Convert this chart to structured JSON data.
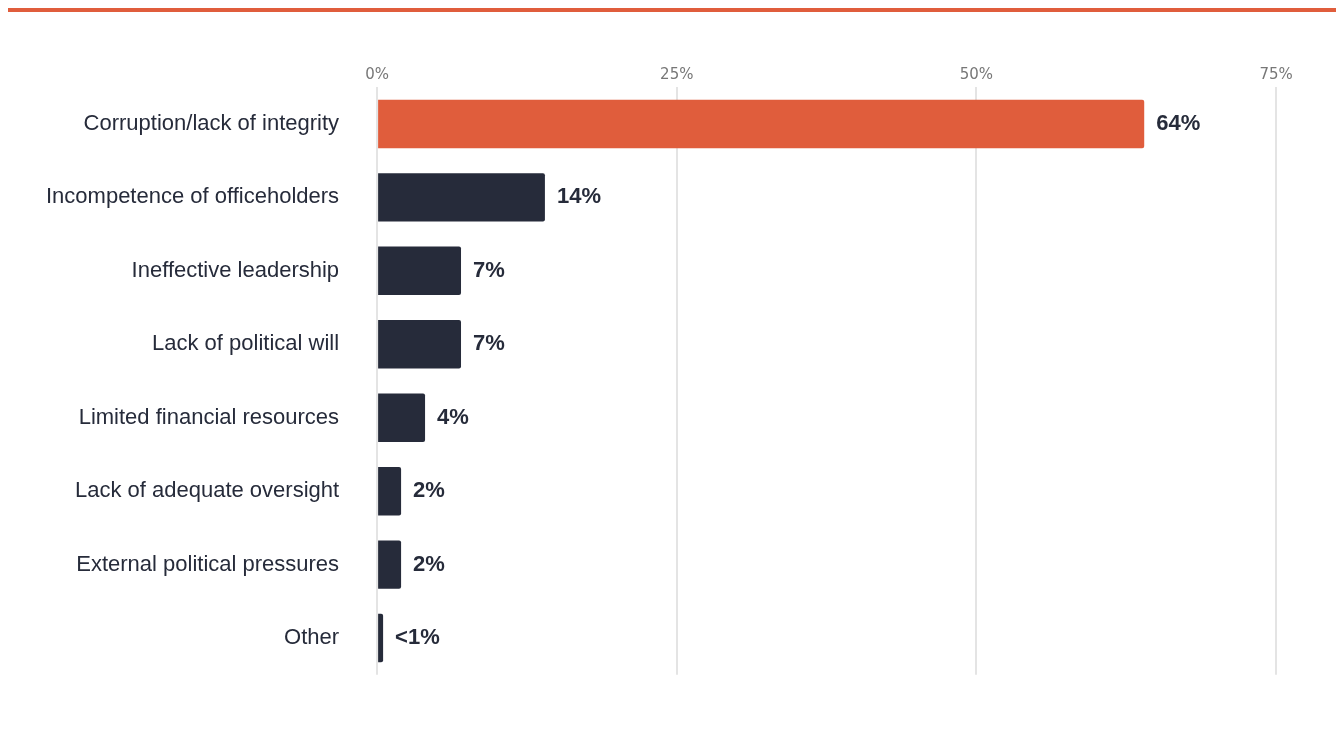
{
  "chart_data": {
    "type": "bar",
    "orientation": "horizontal",
    "categories": [
      "Corruption/lack of integrity",
      "Incompetence of officeholders",
      "Ineffective leadership",
      "Lack of political will",
      "Limited financial resources",
      "Lack of adequate oversight",
      "External political pressures",
      "Other"
    ],
    "values": [
      64,
      14,
      7,
      7,
      4,
      2,
      2,
      0.5
    ],
    "colors": [
      "#e05d3c",
      "#262b3a",
      "#262b3a",
      "#262b3a",
      "#262b3a",
      "#262b3a",
      "#262b3a",
      "#262b3a"
    ],
    "value_labels": [
      "64%",
      "14%",
      "7%",
      "7%",
      "4%",
      "2%",
      "2%",
      "<1%"
    ],
    "xlim": [
      0,
      80
    ],
    "xticks": [
      {
        "value": 0,
        "label": "0%"
      },
      {
        "value": 25,
        "label": "25%"
      },
      {
        "value": 50,
        "label": "50%"
      },
      {
        "value": 75,
        "label": "75%"
      }
    ],
    "grid": "x"
  }
}
